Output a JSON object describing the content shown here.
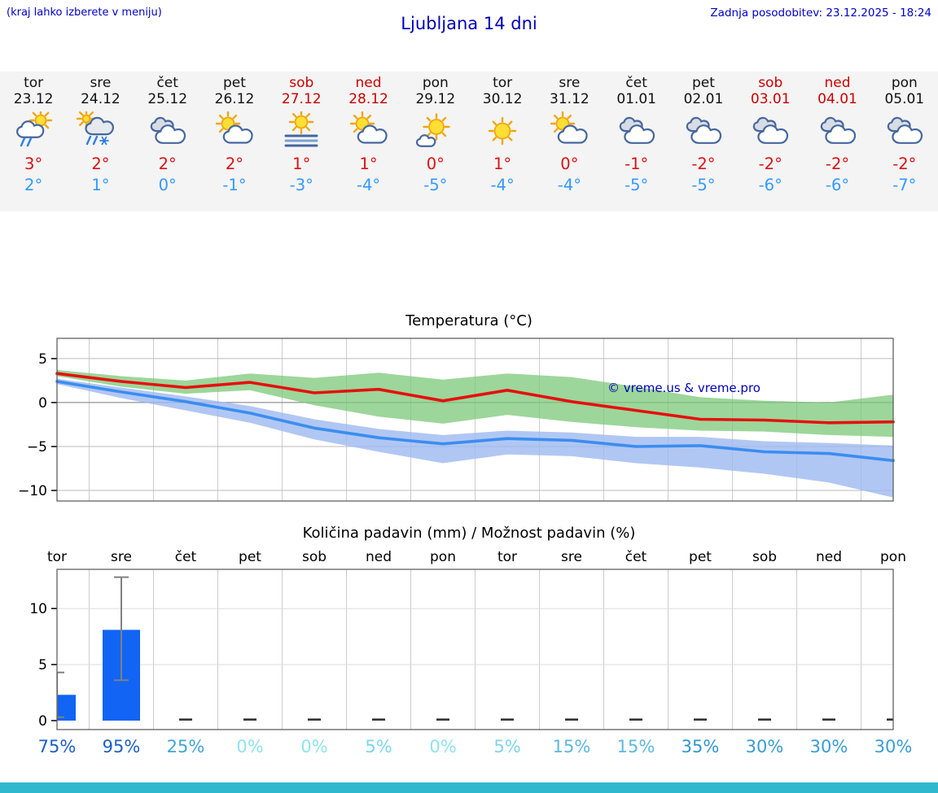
{
  "header": {
    "note": "(kraj lahko izberete v meniju)",
    "title": "Ljubljana 14 dni",
    "updated": "Zadnja posodobitev: 23.12.2025 - 18:24"
  },
  "colors": {
    "accent_blue": "#0000cc",
    "weekend_red": "#cc0000",
    "high_temp_red": "#dd1111",
    "low_temp_blue": "#3399ff",
    "max_line_red": "#e51010",
    "min_line_blue": "#3b8df0",
    "max_band_green": "#7cc878",
    "min_band_blue": "#9db9f0",
    "bar_blue": "#1164f4",
    "footer_teal": "#2fb9cf",
    "strip_bg": "#f4f4f4"
  },
  "forecast": {
    "days": [
      {
        "name": "tor",
        "date": "23.12",
        "weekend": false,
        "icon": "sun_cloud_rain",
        "high": "3°",
        "low": "2°"
      },
      {
        "name": "sre",
        "date": "24.12",
        "weekend": false,
        "icon": "cloud_rain_snow",
        "high": "2°",
        "low": "1°"
      },
      {
        "name": "čet",
        "date": "25.12",
        "weekend": false,
        "icon": "clouds",
        "high": "2°",
        "low": "0°"
      },
      {
        "name": "pet",
        "date": "26.12",
        "weekend": false,
        "icon": "sun_cloud",
        "high": "2°",
        "low": "-1°"
      },
      {
        "name": "sob",
        "date": "27.12",
        "weekend": true,
        "icon": "sun_fog",
        "high": "1°",
        "low": "-3°"
      },
      {
        "name": "ned",
        "date": "28.12",
        "weekend": true,
        "icon": "sun_cloud",
        "high": "1°",
        "low": "-4°"
      },
      {
        "name": "pon",
        "date": "29.12",
        "weekend": false,
        "icon": "sun_small_cloud",
        "high": "0°",
        "low": "-5°"
      },
      {
        "name": "tor",
        "date": "30.12",
        "weekend": false,
        "icon": "sun",
        "high": "1°",
        "low": "-4°"
      },
      {
        "name": "sre",
        "date": "31.12",
        "weekend": false,
        "icon": "sun_cloud",
        "high": "0°",
        "low": "-4°"
      },
      {
        "name": "čet",
        "date": "01.01",
        "weekend": false,
        "icon": "clouds",
        "high": "-1°",
        "low": "-5°"
      },
      {
        "name": "pet",
        "date": "02.01",
        "weekend": false,
        "icon": "clouds",
        "high": "-2°",
        "low": "-5°"
      },
      {
        "name": "sob",
        "date": "03.01",
        "weekend": true,
        "icon": "clouds",
        "high": "-2°",
        "low": "-6°"
      },
      {
        "name": "ned",
        "date": "04.01",
        "weekend": true,
        "icon": "clouds",
        "high": "-2°",
        "low": "-6°"
      },
      {
        "name": "pon",
        "date": "05.01",
        "weekend": false,
        "icon": "clouds",
        "high": "-2°",
        "low": "-7°"
      }
    ]
  },
  "chart_data": [
    {
      "type": "line",
      "title": "Temperatura (°C)",
      "watermark": "© vreme.us & vreme.pro",
      "categories": [
        "tor",
        "sre",
        "čet",
        "pet",
        "sob",
        "ned",
        "pon",
        "tor",
        "sre",
        "čet",
        "pet",
        "sob",
        "ned",
        "pon"
      ],
      "yticks": [
        5,
        0,
        -5,
        -10
      ],
      "ylim": [
        -11.2,
        7.3
      ],
      "grid": true,
      "series": [
        {
          "name": "max-temp",
          "color": "#e51010",
          "values": [
            3.3,
            2.4,
            1.7,
            2.3,
            1.1,
            1.5,
            0.2,
            1.4,
            0.1,
            -0.9,
            -1.9,
            -2.0,
            -2.3,
            -2.2
          ]
        },
        {
          "name": "min-temp",
          "color": "#3b8df0",
          "values": [
            2.4,
            1.2,
            0.1,
            -1.2,
            -2.9,
            -4.0,
            -4.7,
            -4.1,
            -4.3,
            -5.0,
            -4.9,
            -5.6,
            -5.8,
            -6.6
          ]
        }
      ],
      "bands": [
        {
          "name": "max-temp-range",
          "color": "#7cc878",
          "opacity": 0.75,
          "upper": [
            3.7,
            3.0,
            2.5,
            3.3,
            2.8,
            3.4,
            2.6,
            3.3,
            2.9,
            1.8,
            0.6,
            0.2,
            0.0,
            0.9
          ],
          "lower": [
            3.0,
            1.8,
            1.0,
            1.4,
            -0.3,
            -1.6,
            -2.4,
            -1.4,
            -2.2,
            -2.8,
            -3.2,
            -3.3,
            -3.7,
            -3.9
          ]
        },
        {
          "name": "min-temp-range",
          "color": "#9db9f0",
          "opacity": 0.8,
          "upper": [
            2.7,
            1.7,
            0.7,
            -0.4,
            -1.9,
            -3.0,
            -3.7,
            -3.2,
            -3.4,
            -3.9,
            -3.9,
            -4.4,
            -4.6,
            -4.9
          ],
          "lower": [
            2.1,
            0.5,
            -0.9,
            -2.3,
            -4.2,
            -5.6,
            -6.9,
            -5.9,
            -6.1,
            -6.9,
            -7.4,
            -8.1,
            -9.1,
            -10.8
          ]
        }
      ]
    },
    {
      "type": "bar",
      "title": "Količina padavin (mm) / Možnost padavin (%)",
      "categories": [
        "tor",
        "sre",
        "čet",
        "pet",
        "sob",
        "ned",
        "pon",
        "tor",
        "sre",
        "čet",
        "pet",
        "sob",
        "ned",
        "pon"
      ],
      "values": [
        2.3,
        8.1,
        0,
        0,
        0,
        0,
        0,
        0,
        0,
        0,
        0,
        0,
        0,
        0
      ],
      "error_bars": [
        {
          "index": 0,
          "low": 0.3,
          "high": 4.3
        },
        {
          "index": 1,
          "low": 3.6,
          "high": 12.8
        }
      ],
      "yticks": [
        0,
        5,
        10
      ],
      "ylim": [
        -0.8,
        13.5
      ],
      "bar_color": "#1164f4",
      "error_color": "#808080",
      "probabilities": {
        "values": [
          "75%",
          "95%",
          "25%",
          "0%",
          "0%",
          "5%",
          "0%",
          "5%",
          "15%",
          "15%",
          "35%",
          "30%",
          "30%",
          "30%"
        ],
        "colors": [
          "#1b5ec9",
          "#1b5ec9",
          "#41a5da",
          "#90e2ef",
          "#90e2ef",
          "#7cd6e9",
          "#90e2ef",
          "#7cd6e9",
          "#5cb8e0",
          "#5cb8e0",
          "#3294d0",
          "#3a9cd5",
          "#3a9cd5",
          "#3a9cd5"
        ]
      }
    }
  ]
}
